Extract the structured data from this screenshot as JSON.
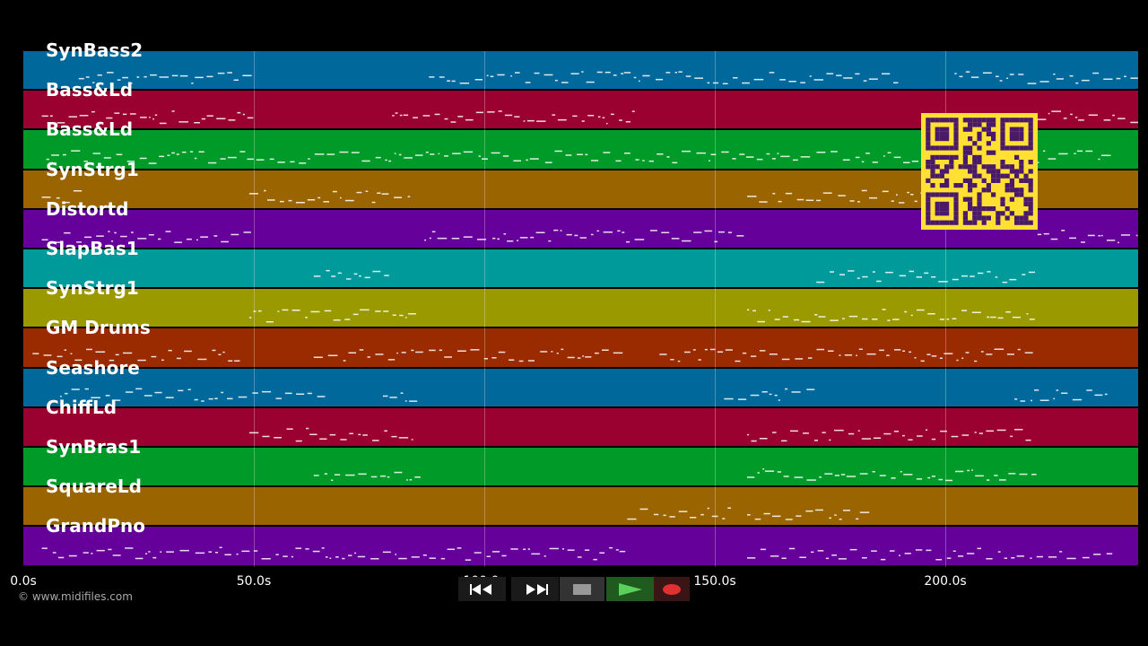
{
  "tracks": [
    {
      "name": "SynBass2",
      "color": "#00689a"
    },
    {
      "name": "Bass&Ld",
      "color": "#9a0030"
    },
    {
      "name": "Bass&Ld",
      "color": "#009a28"
    },
    {
      "name": "SynStrg1",
      "color": "#9a6400"
    },
    {
      "name": "Distortd",
      "color": "#66009a"
    },
    {
      "name": "SlapBas1",
      "color": "#009a9a"
    },
    {
      "name": "SynStrg1",
      "color": "#9a9a00"
    },
    {
      "name": "GM Drums",
      "color": "#9a2a00"
    },
    {
      "name": "Seashore",
      "color": "#00689a"
    },
    {
      "name": "ChiffLd",
      "color": "#9a0030"
    },
    {
      "name": "SynBras1",
      "color": "#009a28"
    },
    {
      "name": "SquareLd",
      "color": "#9a6400"
    },
    {
      "name": "GrandPno",
      "color": "#66009a"
    }
  ],
  "timeline": {
    "ticks": [
      "0.0s",
      "50.0s",
      "100.0s",
      "150.0s",
      "200.0s"
    ],
    "tick_seconds": [
      0,
      50,
      100,
      150,
      200
    ],
    "end_seconds": 242
  },
  "footer": {
    "copyright": "© www.midifiles.com"
  },
  "transport": {
    "icons": [
      "rewind-icon",
      "fast-forward-icon",
      "stop-icon",
      "play-icon",
      "record-icon"
    ]
  },
  "colors": {
    "background": "#000000",
    "qr_background": "#ffe033",
    "qr_foreground": "#4a1a6a"
  }
}
